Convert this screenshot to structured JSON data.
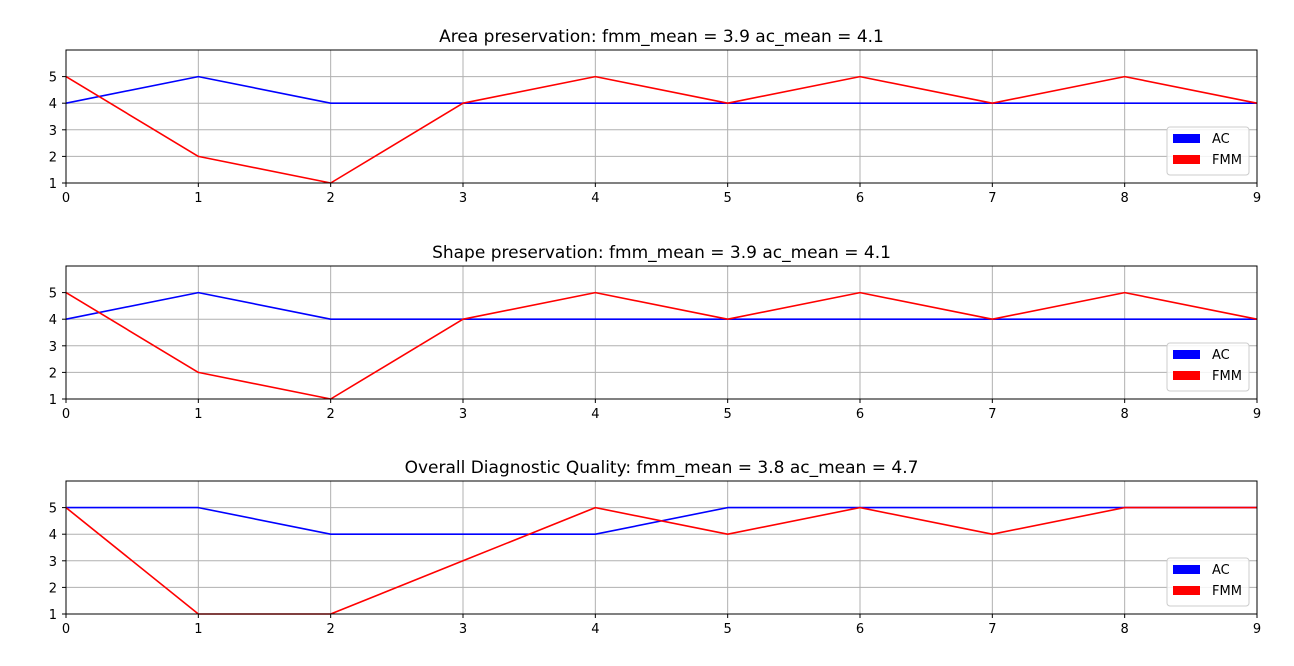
{
  "chart_data": [
    {
      "type": "line",
      "title": "Area preservation: fmm_mean = 3.9 ac_mean = 4.1",
      "x": [
        0,
        1,
        2,
        3,
        4,
        5,
        6,
        7,
        8,
        9
      ],
      "series": [
        {
          "name": "AC",
          "color": "#0000ff",
          "values": [
            4,
            5,
            4,
            4,
            4,
            4,
            4,
            4,
            4,
            4
          ]
        },
        {
          "name": "FMM",
          "color": "#ff0000",
          "values": [
            5,
            2,
            1,
            4,
            5,
            4,
            5,
            4,
            5,
            4
          ]
        }
      ],
      "xlim": [
        0,
        9
      ],
      "ylim": [
        1,
        6
      ],
      "xticks": [
        "0",
        "1",
        "2",
        "3",
        "4",
        "5",
        "6",
        "7",
        "8",
        "9"
      ],
      "yticks": [
        "1",
        "2",
        "3",
        "4",
        "5"
      ],
      "grid": true,
      "legend": "lower-right"
    },
    {
      "type": "line",
      "title": "Shape preservation: fmm_mean = 3.9 ac_mean = 4.1",
      "x": [
        0,
        1,
        2,
        3,
        4,
        5,
        6,
        7,
        8,
        9
      ],
      "series": [
        {
          "name": "AC",
          "color": "#0000ff",
          "values": [
            4,
            5,
            4,
            4,
            4,
            4,
            4,
            4,
            4,
            4
          ]
        },
        {
          "name": "FMM",
          "color": "#ff0000",
          "values": [
            5,
            2,
            1,
            4,
            5,
            4,
            5,
            4,
            5,
            4
          ]
        }
      ],
      "xlim": [
        0,
        9
      ],
      "ylim": [
        1,
        6
      ],
      "xticks": [
        "0",
        "1",
        "2",
        "3",
        "4",
        "5",
        "6",
        "7",
        "8",
        "9"
      ],
      "yticks": [
        "1",
        "2",
        "3",
        "4",
        "5"
      ],
      "grid": true,
      "legend": "lower-right"
    },
    {
      "type": "line",
      "title": "Overall Diagnostic Quality: fmm_mean = 3.8 ac_mean = 4.7",
      "x": [
        0,
        1,
        2,
        3,
        4,
        5,
        6,
        7,
        8,
        9
      ],
      "series": [
        {
          "name": "AC",
          "color": "#0000ff",
          "values": [
            5,
            5,
            4,
            4,
            4,
            5,
            5,
            5,
            5,
            5
          ]
        },
        {
          "name": "FMM",
          "color": "#ff0000",
          "values": [
            5,
            1,
            1,
            3,
            5,
            4,
            5,
            4,
            5,
            5
          ]
        }
      ],
      "xlim": [
        0,
        9
      ],
      "ylim": [
        1,
        6
      ],
      "xticks": [
        "0",
        "1",
        "2",
        "3",
        "4",
        "5",
        "6",
        "7",
        "8",
        "9"
      ],
      "yticks": [
        "1",
        "2",
        "3",
        "4",
        "5"
      ],
      "grid": true,
      "legend": "lower-right"
    }
  ]
}
